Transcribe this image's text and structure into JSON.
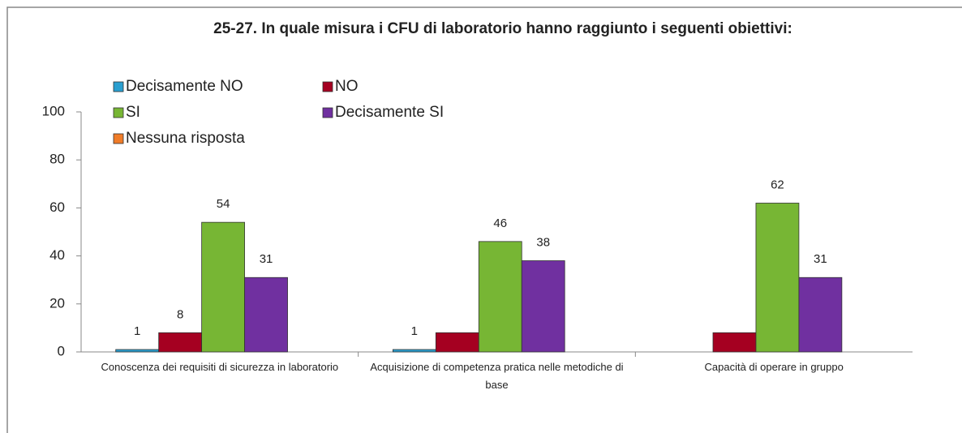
{
  "chart_data": {
    "type": "bar",
    "title": "25-27. In quale misura i CFU di laboratorio hanno raggiunto i seguenti obiettivi:",
    "categories": [
      "Conoscenza dei requisiti di sicurezza in laboratorio",
      "Acquisizione di competenza pratica nelle metodiche di base",
      "Capacità di operare in gruppo"
    ],
    "series": [
      {
        "name": "Decisamente NO",
        "color": "#2a9fd0",
        "values": [
          1,
          1,
          0
        ],
        "value_labels": [
          1,
          1,
          null
        ]
      },
      {
        "name": "NO",
        "color": "#a50021",
        "values": [
          8,
          8,
          8
        ],
        "value_labels": [
          8,
          null,
          null
        ]
      },
      {
        "name": "SI",
        "color": "#77b634",
        "values": [
          54,
          46,
          62
        ],
        "value_labels": [
          54,
          46,
          62
        ]
      },
      {
        "name": "Decisamente SI",
        "color": "#7030a0",
        "values": [
          31,
          38,
          31
        ],
        "value_labels": [
          31,
          38,
          31
        ]
      },
      {
        "name": "Nessuna risposta",
        "color": "#f07c28",
        "values": [
          0,
          0,
          0
        ],
        "value_labels": [
          null,
          null,
          null
        ]
      }
    ],
    "ylim": [
      0,
      100
    ],
    "yticks": [
      0,
      20,
      40,
      60,
      80,
      100
    ],
    "grid": false,
    "legend": "top-left"
  }
}
